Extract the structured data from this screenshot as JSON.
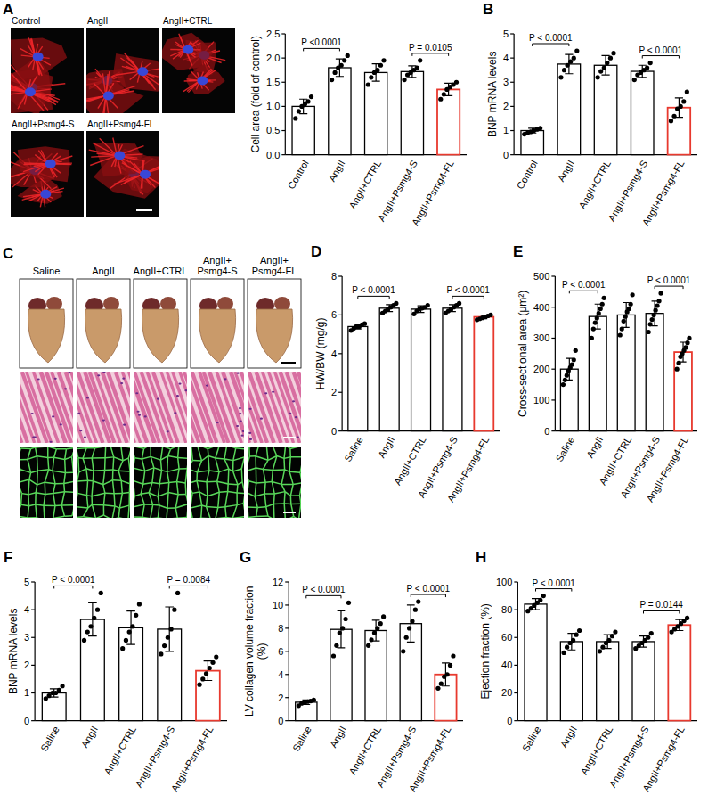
{
  "images": [
    {
      "panel": "A",
      "labels": [
        "Control",
        "AngII",
        "AngII+CTRL",
        "AngII+Psmg4-S",
        "AngII+Psmg4-FL"
      ]
    },
    {
      "panel": "C",
      "labels": [
        "Saline",
        "AngII",
        "AngII+CTRL",
        "AngII+Psmg4-S",
        "AngII+Psmg4-FL"
      ]
    }
  ],
  "chart_data": [
    {
      "type": "bar",
      "y_label": "Cell area (fold of control)",
      "categories": [
        "Control",
        "AngII",
        "AngII+CTRL",
        "AngII+Psmg4-S",
        "AngII+Psmg4-FL"
      ],
      "values": [
        1.0,
        1.8,
        1.7,
        1.72,
        1.35
      ],
      "errors": [
        0.15,
        0.18,
        0.18,
        0.12,
        0.13
      ],
      "points": [
        [
          0.75,
          0.9,
          1.0,
          1.05,
          1.1,
          1.2
        ],
        [
          1.55,
          1.7,
          1.8,
          1.85,
          1.95,
          2.05
        ],
        [
          1.45,
          1.6,
          1.7,
          1.75,
          1.85,
          1.95
        ],
        [
          1.55,
          1.65,
          1.7,
          1.75,
          1.8,
          1.95
        ],
        [
          1.15,
          1.25,
          1.35,
          1.4,
          1.45,
          1.5
        ]
      ],
      "colors": [
        "#000000",
        "#000000",
        "#000000",
        "#000000",
        "#e8392e"
      ],
      "ylim": [
        0,
        2.5
      ],
      "yticks": [
        {
          "value": 0,
          "label": "0.0"
        },
        0.5,
        {
          "value": 1,
          "label": "1.0"
        },
        1.5,
        {
          "value": 2,
          "label": "2.0"
        },
        2.5
      ],
      "grid": false,
      "annotations": [
        {
          "text": "P <0.0001",
          "between": [
            0,
            1
          ]
        },
        {
          "text": "P = 0.0105",
          "between": [
            3,
            4
          ]
        }
      ]
    },
    {
      "type": "bar",
      "panel": "B",
      "y_label": "BNP mRNA levels",
      "categories": [
        "Control",
        "AngII",
        "AngII+CTRL",
        "AngII+Psmg4-S",
        "AngII+Psmg4-FL"
      ],
      "values": [
        1.0,
        3.75,
        3.7,
        3.45,
        1.95
      ],
      "errors": [
        0.1,
        0.4,
        0.4,
        0.25,
        0.4
      ],
      "points": [
        [
          0.85,
          0.9,
          0.95,
          1.0,
          1.05,
          1.1
        ],
        [
          3.2,
          3.5,
          3.7,
          3.85,
          4.0,
          4.3
        ],
        [
          3.2,
          3.45,
          3.6,
          3.8,
          4.0,
          4.2
        ],
        [
          3.1,
          3.3,
          3.4,
          3.5,
          3.6,
          3.8
        ],
        [
          1.4,
          1.6,
          1.9,
          2.0,
          2.2,
          2.6
        ]
      ],
      "colors": [
        "#000000",
        "#000000",
        "#000000",
        "#000000",
        "#e8392e"
      ],
      "ylim": [
        0,
        5
      ],
      "yticks": [
        0,
        1,
        2,
        3,
        4,
        5
      ],
      "grid": false,
      "annotations": [
        {
          "text": "P < 0.0001",
          "between": [
            0,
            1
          ]
        },
        {
          "text": "P < 0.0001",
          "between": [
            3,
            4
          ]
        }
      ]
    },
    {
      "type": "bar",
      "panel": "D",
      "y_label": "HW/BW (mg/g)",
      "categories": [
        "Saline",
        "AngII",
        "AngII+CTRL",
        "AngII+Psmg4-S",
        "AngII+Psmg4-FL"
      ],
      "values": [
        5.4,
        6.35,
        6.3,
        6.35,
        5.9
      ],
      "errors": [
        0.12,
        0.18,
        0.17,
        0.18,
        0.09
      ],
      "points": [
        [
          5.2,
          5.3,
          5.4,
          5.4,
          5.5,
          5.55
        ],
        [
          6.1,
          6.2,
          6.3,
          6.4,
          6.5,
          6.6
        ],
        [
          6.05,
          6.2,
          6.3,
          6.35,
          6.4,
          6.5
        ],
        [
          6.1,
          6.2,
          6.3,
          6.4,
          6.5,
          6.6
        ],
        [
          5.75,
          5.8,
          5.85,
          5.9,
          5.95,
          6.0
        ]
      ],
      "colors": [
        "#000000",
        "#000000",
        "#000000",
        "#000000",
        "#e8392e"
      ],
      "ylim": [
        0,
        8
      ],
      "yticks": [
        0,
        2,
        4,
        6,
        8
      ],
      "grid": false,
      "annotations": [
        {
          "text": "P < 0.0001",
          "between": [
            0,
            1
          ]
        },
        {
          "text": "P < 0.0001",
          "between": [
            3,
            4
          ]
        }
      ]
    },
    {
      "type": "bar",
      "panel": "E",
      "y_label": "Cross-sectional area (μm²)",
      "categories": [
        "Saline",
        "AngII",
        "AngII+CTRL",
        "AngII+Psmg4-S",
        "AngII+Psmg4-FL"
      ],
      "values": [
        200,
        370,
        375,
        380,
        255
      ],
      "errors": [
        35,
        40,
        40,
        40,
        32
      ],
      "points": [
        [
          150,
          165,
          180,
          195,
          205,
          215,
          230,
          260
        ],
        [
          300,
          330,
          350,
          365,
          380,
          395,
          410,
          430
        ],
        [
          310,
          330,
          355,
          370,
          385,
          395,
          410,
          440
        ],
        [
          320,
          345,
          360,
          375,
          390,
          405,
          420,
          445
        ],
        [
          200,
          220,
          240,
          250,
          260,
          270,
          285,
          300
        ]
      ],
      "colors": [
        "#000000",
        "#000000",
        "#000000",
        "#000000",
        "#e8392e"
      ],
      "ylim": [
        0,
        500
      ],
      "yticks": [
        0,
        100,
        200,
        300,
        400,
        500
      ],
      "grid": false,
      "annotations": [
        {
          "text": "P < 0.0001",
          "between": [
            0,
            1
          ]
        },
        {
          "text": "P < 0.0001",
          "between": [
            3,
            4
          ]
        }
      ]
    },
    {
      "type": "bar",
      "panel": "F",
      "y_label": "BNP mRNA levels",
      "categories": [
        "Saline",
        "AngII",
        "AngII+CTRL",
        "AngII+Psmg4-S",
        "AngII+Psmg4-FL"
      ],
      "values": [
        1.0,
        3.65,
        3.35,
        3.3,
        1.8
      ],
      "errors": [
        0.15,
        0.6,
        0.6,
        0.8,
        0.35
      ],
      "points": [
        [
          0.8,
          0.9,
          1.0,
          1.0,
          1.1,
          1.25
        ],
        [
          2.9,
          3.2,
          3.4,
          3.7,
          4.0,
          4.6
        ],
        [
          2.6,
          2.9,
          3.2,
          3.4,
          3.8,
          4.2
        ],
        [
          2.4,
          2.7,
          3.0,
          3.3,
          4.0,
          4.6
        ],
        [
          1.3,
          1.5,
          1.7,
          1.9,
          2.1,
          2.3
        ]
      ],
      "colors": [
        "#000000",
        "#000000",
        "#000000",
        "#000000",
        "#e8392e"
      ],
      "ylim": [
        0,
        5
      ],
      "yticks": [
        0,
        1,
        2,
        3,
        4,
        5
      ],
      "grid": false,
      "annotations": [
        {
          "text": "P < 0.0001",
          "between": [
            0,
            1
          ]
        },
        {
          "text": "P = 0.0084",
          "between": [
            3,
            4
          ]
        }
      ]
    },
    {
      "type": "bar",
      "panel": "G",
      "y_label": "LV collagen volume fraction (%)",
      "categories": [
        "Saline",
        "AngII",
        "AngII+CTRL",
        "AngII+Psmg4-S",
        "AngII+Psmg4-FL"
      ],
      "values": [
        1.6,
        7.9,
        7.8,
        8.4,
        4.0
      ],
      "errors": [
        0.2,
        1.6,
        0.9,
        1.6,
        1.0
      ],
      "points": [
        [
          1.3,
          1.5,
          1.6,
          1.65,
          1.7,
          1.8
        ],
        [
          5.6,
          6.5,
          7.6,
          8.0,
          8.8,
          10.2
        ],
        [
          6.5,
          7.0,
          7.6,
          8.0,
          8.4,
          9.0
        ],
        [
          6.0,
          7.2,
          8.0,
          8.6,
          9.6,
          10.3
        ],
        [
          2.8,
          3.2,
          3.8,
          4.0,
          4.8,
          5.6
        ]
      ],
      "colors": [
        "#000000",
        "#000000",
        "#000000",
        "#000000",
        "#e8392e"
      ],
      "ylim": [
        0,
        12
      ],
      "yticks": [
        0,
        2,
        4,
        6,
        8,
        10,
        12
      ],
      "grid": false,
      "annotations": [
        {
          "text": "P < 0.0001",
          "between": [
            0,
            1
          ]
        },
        {
          "text": "P < 0.0001",
          "between": [
            3,
            4
          ]
        }
      ]
    },
    {
      "type": "bar",
      "panel": "H",
      "y_label": "Ejection fraction (%)",
      "categories": [
        "Saline",
        "AngII",
        "AngII+CTRL",
        "AngII+Psmg4-S",
        "AngII+Psmg4-FL"
      ],
      "values": [
        84,
        57,
        57,
        57,
        69
      ],
      "errors": [
        4,
        6,
        5,
        4,
        4
      ],
      "points": [
        [
          79,
          81,
          83,
          85,
          87,
          90
        ],
        [
          49,
          53,
          56,
          58,
          62,
          65
        ],
        [
          50,
          53,
          56,
          58,
          61,
          64
        ],
        [
          52,
          54,
          56,
          58,
          60,
          63
        ],
        [
          64,
          66,
          68,
          70,
          72,
          74
        ]
      ],
      "colors": [
        "#000000",
        "#000000",
        "#000000",
        "#000000",
        "#e8392e"
      ],
      "ylim": [
        0,
        100
      ],
      "yticks": [
        0,
        20,
        40,
        60,
        80,
        100
      ],
      "grid": false,
      "annotations": [
        {
          "text": "P < 0.0001",
          "between": [
            0,
            1
          ]
        },
        {
          "text": "P = 0.0144",
          "between": [
            3,
            4
          ]
        }
      ]
    }
  ]
}
